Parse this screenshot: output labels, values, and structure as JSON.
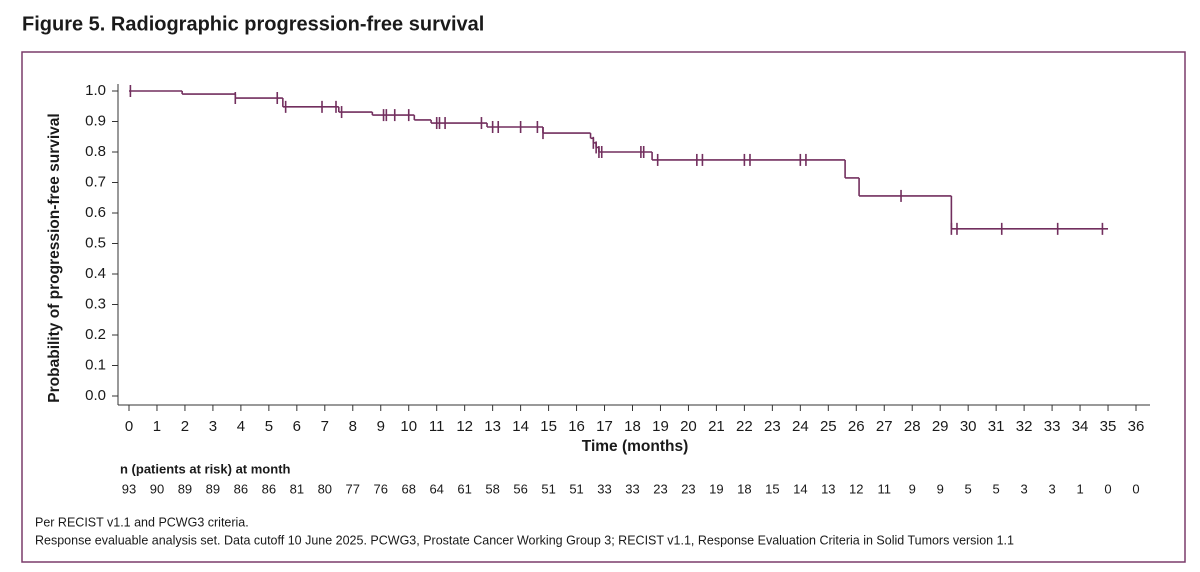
{
  "chart_data": {
    "type": "line",
    "title": "Figure 5. Radiographic progression-free survival",
    "y_label": "Probability of progression-free survival",
    "x_label": "Time (months)",
    "color": "#722f5e",
    "step": {
      "x": [
        0,
        1.9,
        3.8,
        5.5,
        7.5,
        8.7,
        10.2,
        10.8,
        12.8,
        14.8,
        16.5,
        16.6,
        16.7,
        16.8,
        18.7,
        25.6,
        26.1,
        29.4,
        35
      ],
      "y": [
        1.0,
        0.99,
        0.977,
        0.948,
        0.931,
        0.921,
        0.905,
        0.895,
        0.882,
        0.862,
        0.845,
        0.83,
        0.815,
        0.8,
        0.774,
        0.715,
        0.656,
        0.548,
        0.548
      ]
    },
    "censored_x": [
      0.05,
      3.8,
      5.3,
      5.6,
      6.9,
      7.4,
      7.6,
      9.1,
      9.2,
      9.5,
      10.0,
      11.0,
      11.1,
      11.3,
      12.6,
      13.0,
      13.2,
      14.0,
      14.6,
      14.8,
      16.6,
      16.7,
      16.8,
      16.9,
      18.3,
      18.4,
      18.9,
      20.3,
      20.5,
      22.0,
      22.2,
      24.0,
      24.2,
      27.6,
      29.4,
      29.6,
      31.2,
      33.2,
      34.8
    ],
    "xlim": [
      0,
      36
    ],
    "xticks": [
      0,
      1,
      2,
      3,
      4,
      5,
      6,
      7,
      8,
      9,
      10,
      11,
      12,
      13,
      14,
      15,
      16,
      17,
      18,
      19,
      20,
      21,
      22,
      23,
      24,
      25,
      26,
      27,
      28,
      29,
      30,
      31,
      32,
      33,
      34,
      35,
      36
    ],
    "ylim": [
      0,
      1
    ],
    "yticks": [
      {
        "value": 0,
        "label": "0.0"
      },
      0.1,
      0.2,
      0.3,
      0.4,
      0.5,
      0.6,
      0.7,
      0.8,
      0.9,
      {
        "value": 1,
        "label": "1.0"
      }
    ],
    "at_risk_title": "n (patients at risk) at month",
    "at_risk": [
      93,
      90,
      89,
      89,
      86,
      86,
      81,
      80,
      77,
      76,
      68,
      64,
      61,
      58,
      56,
      51,
      51,
      33,
      33,
      23,
      23,
      19,
      18,
      15,
      14,
      13,
      12,
      11,
      9,
      9,
      5,
      5,
      3,
      3,
      1,
      0,
      0
    ],
    "footnotes": [
      "Per RECIST v1.1 and PCWG3 criteria.",
      "Response evaluable analysis set. Data cutoff 10 June 2025. PCWG3, Prostate Cancer Working Group 3; RECIST v1.1, Response Evaluation Criteria in Solid Tumors version 1.1"
    ]
  }
}
